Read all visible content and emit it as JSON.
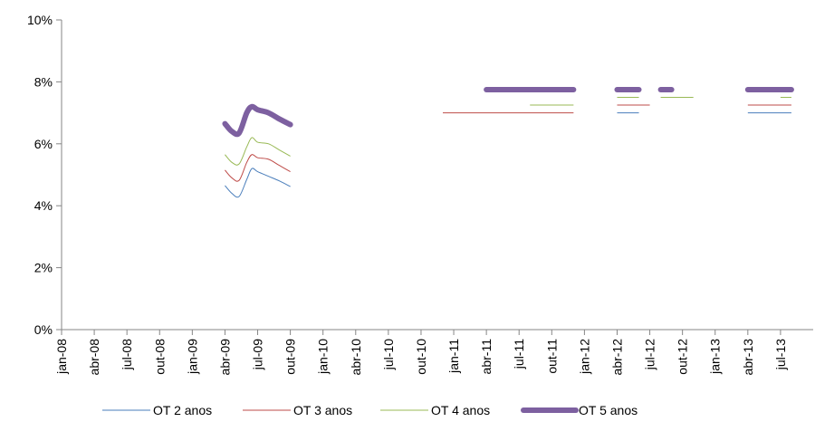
{
  "chart_data": {
    "type": "line",
    "title": "",
    "xlabel": "",
    "ylabel": "",
    "x_ticks": [
      "jan-08",
      "abr-08",
      "jul-08",
      "out-08",
      "jan-09",
      "abr-09",
      "jul-09",
      "out-09",
      "jan-10",
      "abr-10",
      "jul-10",
      "out-10",
      "jan-11",
      "abr-11",
      "jul-11",
      "out-11",
      "jan-12",
      "abr-12",
      "jul-12",
      "out-12",
      "jan-13",
      "abr-13",
      "jul-13"
    ],
    "y_ticks": [
      "0%",
      "2%",
      "4%",
      "6%",
      "8%",
      "10%"
    ],
    "ylim": [
      0,
      10
    ],
    "grid": false,
    "legend_position": "bottom",
    "series": [
      {
        "name": "OT 2 anos",
        "color": "#4a7ebb",
        "segments": [
          [
            [
              "2009-04-01",
              4.65
            ],
            [
              "2009-04-20",
              4.4
            ],
            [
              "2009-05-10",
              4.3
            ],
            [
              "2009-06-01",
              4.85
            ],
            [
              "2009-06-15",
              5.2
            ],
            [
              "2009-07-01",
              5.1
            ],
            [
              "2009-08-01",
              4.95
            ],
            [
              "2009-09-01",
              4.8
            ],
            [
              "2009-10-01",
              4.62
            ]
          ],
          [
            [
              "2012-04-01",
              7.0
            ],
            [
              "2012-06-01",
              7.0
            ]
          ],
          [
            [
              "2013-04-01",
              7.0
            ],
            [
              "2013-08-01",
              7.0
            ]
          ]
        ]
      },
      {
        "name": "OT 3 anos",
        "color": "#be4b48",
        "segments": [
          [
            [
              "2009-04-01",
              5.15
            ],
            [
              "2009-04-20",
              4.9
            ],
            [
              "2009-05-10",
              4.82
            ],
            [
              "2009-06-01",
              5.4
            ],
            [
              "2009-06-15",
              5.65
            ],
            [
              "2009-07-01",
              5.55
            ],
            [
              "2009-08-01",
              5.5
            ],
            [
              "2009-09-01",
              5.3
            ],
            [
              "2009-10-01",
              5.1
            ]
          ],
          [
            [
              "2010-12-01",
              7.0
            ],
            [
              "2011-12-01",
              7.0
            ]
          ],
          [
            [
              "2012-04-01",
              7.25
            ],
            [
              "2012-07-01",
              7.25
            ]
          ],
          [
            [
              "2013-04-01",
              7.25
            ],
            [
              "2013-08-01",
              7.25
            ]
          ]
        ]
      },
      {
        "name": "OT 4 anos",
        "color": "#98b954",
        "segments": [
          [
            [
              "2009-04-01",
              5.65
            ],
            [
              "2009-04-20",
              5.4
            ],
            [
              "2009-05-10",
              5.35
            ],
            [
              "2009-06-01",
              5.9
            ],
            [
              "2009-06-15",
              6.2
            ],
            [
              "2009-07-01",
              6.05
            ],
            [
              "2009-08-01",
              6.0
            ],
            [
              "2009-09-01",
              5.8
            ],
            [
              "2009-10-01",
              5.6
            ]
          ],
          [
            [
              "2011-08-01",
              7.25
            ],
            [
              "2011-12-01",
              7.25
            ]
          ],
          [
            [
              "2012-04-01",
              7.5
            ],
            [
              "2012-06-01",
              7.5
            ]
          ],
          [
            [
              "2012-08-01",
              7.5
            ],
            [
              "2012-11-01",
              7.5
            ]
          ],
          [
            [
              "2013-07-01",
              7.5
            ],
            [
              "2013-08-01",
              7.5
            ]
          ]
        ]
      },
      {
        "name": "OT 5 anos",
        "color": "#7d60a0",
        "segments": [
          [
            [
              "2009-04-01",
              6.65
            ],
            [
              "2009-04-20",
              6.4
            ],
            [
              "2009-05-10",
              6.35
            ],
            [
              "2009-06-01",
              7.0
            ],
            [
              "2009-06-15",
              7.2
            ],
            [
              "2009-07-01",
              7.1
            ],
            [
              "2009-08-01",
              7.0
            ],
            [
              "2009-09-01",
              6.8
            ],
            [
              "2009-10-01",
              6.62
            ]
          ],
          [
            [
              "2011-04-01",
              7.75
            ],
            [
              "2011-12-01",
              7.75
            ]
          ],
          [
            [
              "2012-04-01",
              7.75
            ],
            [
              "2012-06-01",
              7.75
            ]
          ],
          [
            [
              "2012-08-01",
              7.75
            ],
            [
              "2012-09-01",
              7.75
            ]
          ],
          [
            [
              "2013-04-01",
              7.75
            ],
            [
              "2013-08-01",
              7.75
            ]
          ]
        ]
      }
    ]
  }
}
